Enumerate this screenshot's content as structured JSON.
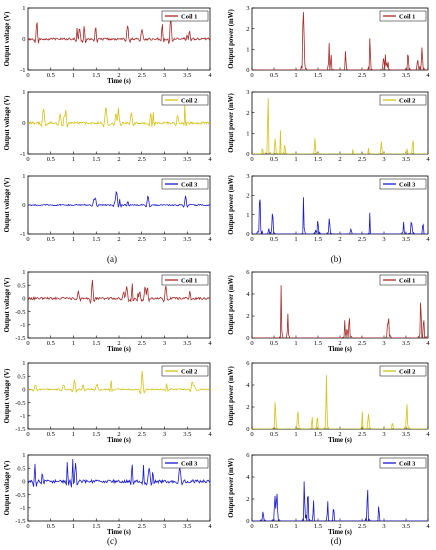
{
  "captions": [
    "(a)",
    "(b)",
    "(c)",
    "(d)"
  ],
  "colors": {
    "coil_1": "#a52a2a",
    "coil_2": "#d4c21a",
    "coil_3": "#1a1acc",
    "coil_2_aux": "#4caf50"
  },
  "chart_data": [
    {
      "id": "a1",
      "type": "line",
      "series": [
        {
          "name": "Coil 1",
          "color": "#a52a2a"
        }
      ],
      "xlabel": "Time (s)",
      "ylabel": "Output voltage (V)",
      "xlim": [
        0,
        4
      ],
      "ylim": [
        -1,
        1
      ],
      "xticks": [
        0,
        0.5,
        1,
        1.5,
        2,
        2.5,
        3,
        3.5,
        4
      ],
      "yticks": [
        -1,
        0,
        1
      ],
      "legend": "top-right",
      "seed": 11,
      "mode": "voltage",
      "amp": 0.7
    },
    {
      "id": "b1",
      "type": "line",
      "series": [
        {
          "name": "Coil 1",
          "color": "#a52a2a"
        }
      ],
      "xlabel": "",
      "ylabel": "Output power (mW)",
      "xlim": [
        0,
        4
      ],
      "ylim": [
        0,
        3
      ],
      "xticks": [
        0,
        0.5,
        1,
        1.5,
        2,
        2.5,
        3,
        3.5,
        4
      ],
      "yticks": [
        0,
        1,
        2,
        3
      ],
      "legend": "top-right",
      "seed": 21,
      "mode": "power",
      "amp": 2.8
    },
    {
      "id": "a2",
      "type": "line",
      "series": [
        {
          "name": "Coil 2",
          "color": "#d4c21a"
        }
      ],
      "xlabel": "",
      "ylabel": "Output voltage (V)",
      "xlim": [
        0,
        4
      ],
      "ylim": [
        -1,
        1
      ],
      "xticks": [
        0,
        0.5,
        1,
        1.5,
        2,
        2.5,
        3,
        3.5,
        4
      ],
      "yticks": [
        -1,
        0,
        1
      ],
      "legend": "top-right",
      "seed": 12,
      "mode": "voltage",
      "amp": 0.6
    },
    {
      "id": "b2",
      "type": "line",
      "series": [
        {
          "name": "Coil 2",
          "color": "#d4c21a"
        }
      ],
      "xlabel": "",
      "ylabel": "Output power (mW)",
      "xlim": [
        0,
        4
      ],
      "ylim": [
        0,
        3
      ],
      "xticks": [
        0,
        0.5,
        1,
        1.5,
        2,
        2.5,
        3,
        3.5,
        4
      ],
      "yticks": [
        0,
        1,
        2,
        3
      ],
      "legend": "top-right",
      "seed": 22,
      "mode": "power",
      "amp": 2.7
    },
    {
      "id": "a3",
      "type": "line",
      "series": [
        {
          "name": "Coil 3",
          "color": "#1a1acc"
        }
      ],
      "xlabel": "",
      "ylabel": "Output voltage (V)",
      "xlim": [
        0,
        4
      ],
      "ylim": [
        -1,
        1
      ],
      "xticks": [
        0,
        0.5,
        1,
        1.5,
        2,
        2.5,
        3,
        3.5,
        4
      ],
      "yticks": [
        -1,
        0,
        1
      ],
      "legend": "top-right",
      "seed": 13,
      "mode": "voltage",
      "amp": 0.45
    },
    {
      "id": "b3",
      "type": "line",
      "series": [
        {
          "name": "Coil 3",
          "color": "#1a1acc"
        }
      ],
      "xlabel": "",
      "ylabel": "Output power (mW)",
      "xlim": [
        0,
        4
      ],
      "ylim": [
        0,
        3
      ],
      "xticks": [
        0,
        0.5,
        1,
        1.5,
        2,
        2.5,
        3,
        3.5,
        4
      ],
      "yticks": [
        0,
        1,
        2,
        3
      ],
      "legend": "top-right",
      "seed": 23,
      "mode": "power",
      "amp": 1.9
    },
    {
      "id": "c1",
      "type": "line",
      "series": [
        {
          "name": "Coil 1",
          "color": "#a52a2a"
        }
      ],
      "xlabel": "Time (s)",
      "ylabel": "Output voltage (V)",
      "xlim": [
        0,
        4
      ],
      "ylim": [
        -1.5,
        1
      ],
      "xticks": [
        0,
        0.5,
        1,
        1.5,
        2,
        2.5,
        3,
        3.5,
        4
      ],
      "yticks": [
        -1.5,
        -1,
        -0.5,
        0,
        0.5,
        1
      ],
      "legend": "top-right",
      "seed": 31,
      "mode": "voltage",
      "amp": 0.7
    },
    {
      "id": "d1",
      "type": "line",
      "series": [
        {
          "name": "Coil 1",
          "color": "#a52a2a"
        }
      ],
      "xlabel": "Time (s)",
      "ylabel": "Output power (mW)",
      "xlim": [
        0,
        4
      ],
      "ylim": [
        0,
        6
      ],
      "xticks": [
        0,
        0.5,
        1,
        1.5,
        2,
        2.5,
        3,
        3.5,
        4
      ],
      "yticks": [
        0,
        2,
        4,
        6
      ],
      "legend": "top-right",
      "seed": 41,
      "mode": "power",
      "amp": 4.8
    },
    {
      "id": "c2",
      "type": "line",
      "series": [
        {
          "name": "Coil 2",
          "color": "#d4c21a"
        }
      ],
      "xlabel": "Time (s)",
      "ylabel": "Output voltage (V)",
      "xlim": [
        0,
        4
      ],
      "ylim": [
        -1.5,
        1
      ],
      "xticks": [
        0,
        0.5,
        1,
        1.5,
        2,
        2.5,
        3,
        3.5,
        4
      ],
      "yticks": [
        -1.5,
        -1,
        -0.5,
        0,
        0.5,
        1
      ],
      "legend": "top-right",
      "seed": 32,
      "mode": "voltage",
      "amp": 0.7
    },
    {
      "id": "d2",
      "type": "line",
      "series": [
        {
          "name": "Coil 2",
          "color": "#d4c21a"
        }
      ],
      "xlabel": "Time (s)",
      "ylabel": "Output power (mW)",
      "xlim": [
        0,
        4
      ],
      "ylim": [
        0,
        6
      ],
      "xticks": [
        0,
        0.5,
        1,
        1.5,
        2,
        2.5,
        3,
        3.5,
        4
      ],
      "yticks": [
        0,
        2,
        4,
        6
      ],
      "legend": "top-right",
      "seed": 42,
      "mode": "power",
      "amp": 4.9
    },
    {
      "id": "c3",
      "type": "line",
      "series": [
        {
          "name": "Coil 3",
          "color": "#1a1acc"
        }
      ],
      "xlabel": "Time (s)",
      "ylabel": "Output voltage (V)",
      "xlim": [
        0,
        4
      ],
      "ylim": [
        -1.5,
        1
      ],
      "xticks": [
        0,
        0.5,
        1,
        1.5,
        2,
        2.5,
        3,
        3.5,
        4
      ],
      "yticks": [
        -1.5,
        -1,
        -0.5,
        0,
        0.5,
        1
      ],
      "legend": "top-right",
      "seed": 33,
      "mode": "voltage",
      "amp": 0.85
    },
    {
      "id": "d3",
      "type": "line",
      "series": [
        {
          "name": "Coil 3",
          "color": "#1a1acc"
        }
      ],
      "xlabel": "Time (s)",
      "ylabel": "Output power (mW)",
      "xlim": [
        0,
        4
      ],
      "ylim": [
        0,
        6
      ],
      "xticks": [
        0,
        0.5,
        1,
        1.5,
        2,
        2.5,
        3,
        3.5,
        4
      ],
      "yticks": [
        0,
        2,
        4,
        6
      ],
      "legend": "top-right",
      "seed": 43,
      "mode": "power",
      "amp": 3.6
    }
  ]
}
